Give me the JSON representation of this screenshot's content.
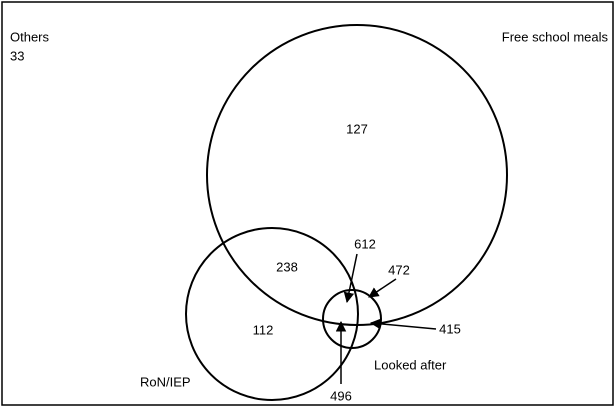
{
  "sets": [
    {
      "label": "Free school meals"
    },
    {
      "label": "RoN/IEP"
    },
    {
      "label": "Looked after"
    }
  ],
  "outside": {
    "label": "Others",
    "count": 33
  },
  "regions": [
    {
      "count": 127
    },
    {
      "count": 238
    },
    {
      "count": 112
    },
    {
      "count": 612
    },
    {
      "count": 472
    },
    {
      "count": 415
    },
    {
      "count": 496
    }
  ]
}
